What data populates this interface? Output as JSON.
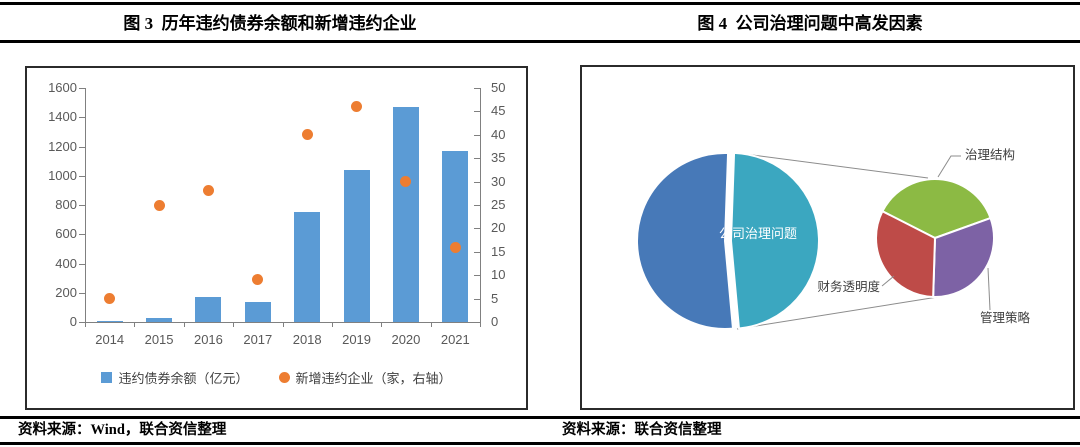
{
  "figure3": {
    "title": "图 3  历年违约债券余额和新增违约企业",
    "source": "资料来源：Wind，联合资信整理",
    "legend": [
      {
        "label": "违约债券余额（亿元）",
        "marker": "square",
        "color": "#5B9BD5"
      },
      {
        "label": "新增违约企业（家，右轴）",
        "marker": "circle",
        "color": "#ED7D31"
      }
    ]
  },
  "figure4": {
    "title": "图 4  公司治理问题中高发因素",
    "source": "资料来源：联合资信整理"
  },
  "chart_data": [
    {
      "id": "figure3",
      "type": "bar",
      "title": "历年违约债券余额和新增违约企业",
      "categories": [
        "2014",
        "2015",
        "2016",
        "2017",
        "2018",
        "2019",
        "2020",
        "2021"
      ],
      "series": [
        {
          "name": "违约债券余额（亿元）",
          "type": "bar",
          "axis": "left",
          "color": "#5B9BD5",
          "values": [
            10,
            30,
            170,
            140,
            750,
            1040,
            1470,
            1170
          ]
        },
        {
          "name": "新增违约企业（家，右轴）",
          "type": "scatter",
          "axis": "right",
          "color": "#ED7D31",
          "values": [
            5,
            25,
            28,
            9,
            40,
            46,
            30,
            16
          ]
        }
      ],
      "left_axis": {
        "min": 0,
        "max": 1600,
        "step": 200
      },
      "right_axis": {
        "min": 0,
        "max": 50,
        "step": 5
      },
      "grid": false,
      "legend_position": "bottom",
      "values_estimated": true
    },
    {
      "id": "figure4",
      "type": "pie",
      "variant": "pie-of-pie",
      "title": "公司治理问题中高发因素",
      "main_pie": {
        "slices": [
          {
            "label": "公司治理问题",
            "value_pct": 48,
            "color": "#3BA7C0",
            "label_inside": true,
            "exploded": true
          },
          {
            "label": "",
            "value_pct": 52,
            "color": "#4779B8",
            "label_inside": false,
            "exploded": false
          }
        ]
      },
      "secondary_pie": {
        "parent_slice": "公司治理问题",
        "slices": [
          {
            "label": "治理结构",
            "value_pct": 37,
            "color": "#8CBA44"
          },
          {
            "label": "管理策略",
            "value_pct": 31,
            "color": "#7D62A5"
          },
          {
            "label": "财务透明度",
            "value_pct": 32,
            "color": "#BE4B48"
          }
        ]
      },
      "legend_position": "none",
      "values_estimated": true
    }
  ]
}
